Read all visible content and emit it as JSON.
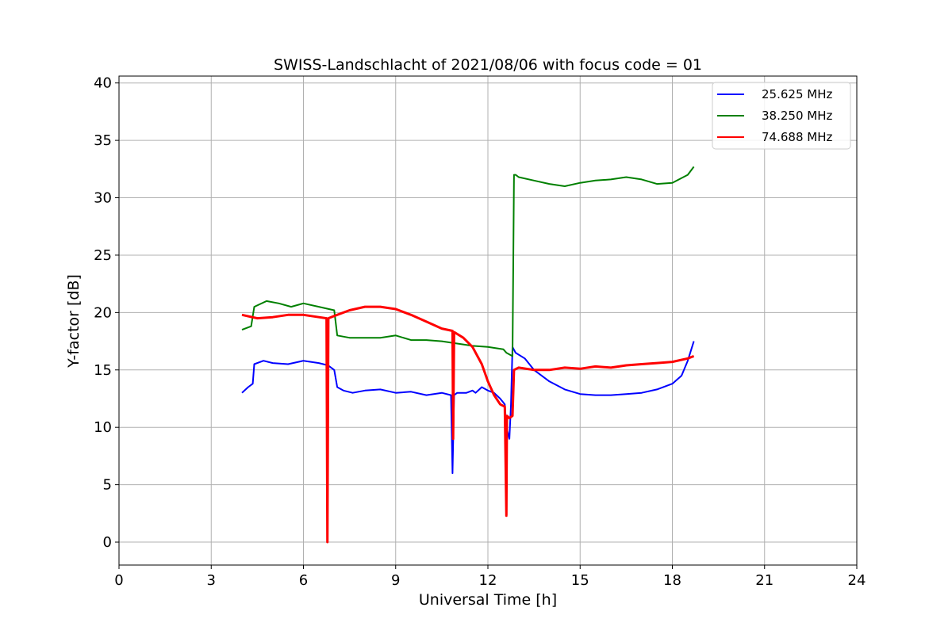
{
  "chart_data": {
    "type": "line",
    "title": "SWISS-Landschlacht of 2021/08/06 with focus code = 01",
    "xlabel": "Universal Time [h]",
    "ylabel": "Y-factor [dB]",
    "xlim": [
      0,
      24
    ],
    "ylim": [
      -2,
      40.6
    ],
    "xticks": [
      0,
      3,
      6,
      9,
      12,
      15,
      18,
      21,
      24
    ],
    "yticks": [
      0,
      5,
      10,
      15,
      20,
      25,
      30,
      35,
      40
    ],
    "grid": true,
    "legend_position": "top-right",
    "series": [
      {
        "name": "25.625 MHz",
        "color": "#0000ff",
        "x": [
          4.0,
          4.2,
          4.35,
          4.4,
          4.7,
          5.0,
          5.5,
          6.0,
          6.5,
          6.8,
          7.0,
          7.1,
          7.3,
          7.6,
          8.0,
          8.5,
          9.0,
          9.5,
          10.0,
          10.5,
          10.8,
          10.85,
          10.9,
          11.0,
          11.3,
          11.5,
          11.6,
          11.8,
          12.0,
          12.2,
          12.4,
          12.55,
          12.6,
          12.7,
          12.75,
          12.8,
          12.9,
          13.2,
          13.5,
          14.0,
          14.5,
          15.0,
          15.5,
          16.0,
          16.5,
          17.0,
          17.5,
          18.0,
          18.3,
          18.5,
          18.7
        ],
        "y": [
          13.0,
          13.5,
          13.8,
          15.5,
          15.8,
          15.6,
          15.5,
          15.8,
          15.6,
          15.4,
          15.0,
          13.5,
          13.2,
          13.0,
          13.2,
          13.3,
          13.0,
          13.1,
          12.8,
          13.0,
          12.8,
          6.0,
          12.8,
          13.0,
          13.0,
          13.2,
          13.0,
          13.5,
          13.2,
          13.0,
          12.5,
          12.0,
          10.0,
          9.0,
          12.0,
          17.0,
          16.5,
          16.0,
          15.0,
          14.0,
          13.3,
          12.9,
          12.8,
          12.8,
          12.9,
          13.0,
          13.3,
          13.8,
          14.5,
          15.8,
          17.5
        ]
      },
      {
        "name": "38.250 MHz",
        "color": "#008000",
        "x": [
          4.0,
          4.3,
          4.4,
          4.8,
          5.2,
          5.6,
          6.0,
          6.5,
          7.0,
          7.1,
          7.5,
          8.0,
          8.5,
          9.0,
          9.5,
          10.0,
          10.5,
          11.0,
          11.5,
          12.0,
          12.5,
          12.6,
          12.8,
          12.85,
          12.9,
          13.0,
          13.5,
          14.0,
          14.5,
          15.0,
          15.5,
          16.0,
          16.5,
          17.0,
          17.5,
          18.0,
          18.5,
          18.7
        ],
        "y": [
          18.5,
          18.8,
          20.5,
          21.0,
          20.8,
          20.5,
          20.8,
          20.5,
          20.2,
          18.0,
          17.8,
          17.8,
          17.8,
          18.0,
          17.6,
          17.6,
          17.5,
          17.3,
          17.1,
          17.0,
          16.8,
          16.5,
          16.2,
          32.0,
          32.0,
          31.8,
          31.5,
          31.2,
          31.0,
          31.3,
          31.5,
          31.6,
          31.8,
          31.6,
          31.2,
          31.3,
          32.0,
          32.7
        ]
      },
      {
        "name": "74.688 MHz",
        "color": "#ff0000",
        "x": [
          4.0,
          4.5,
          5.0,
          5.5,
          6.0,
          6.5,
          6.75,
          6.78,
          6.81,
          7.0,
          7.5,
          8.0,
          8.5,
          9.0,
          9.5,
          10.0,
          10.5,
          10.85,
          10.87,
          10.9,
          11.2,
          11.5,
          11.8,
          12.0,
          12.2,
          12.4,
          12.55,
          12.6,
          12.62,
          12.7,
          12.8,
          12.85,
          13.0,
          13.5,
          14.0,
          14.5,
          15.0,
          15.5,
          16.0,
          16.5,
          17.0,
          17.5,
          18.0,
          18.5,
          18.7
        ],
        "y": [
          19.8,
          19.5,
          19.6,
          19.8,
          19.8,
          19.6,
          19.5,
          0.0,
          19.5,
          19.7,
          20.2,
          20.5,
          20.5,
          20.3,
          19.8,
          19.2,
          18.6,
          18.4,
          9.0,
          18.3,
          17.8,
          17.0,
          15.5,
          14.0,
          12.8,
          12.0,
          11.8,
          2.3,
          11.0,
          10.8,
          11.0,
          15.0,
          15.2,
          15.0,
          15.0,
          15.2,
          15.1,
          15.3,
          15.2,
          15.4,
          15.5,
          15.6,
          15.7,
          16.0,
          16.2
        ]
      }
    ]
  }
}
